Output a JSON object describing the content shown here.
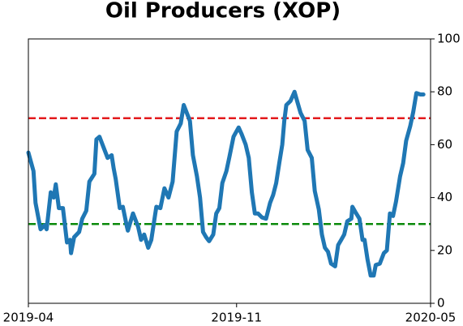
{
  "chart_data": {
    "type": "line",
    "title": "Oil Producers (XOP)",
    "xlim": [
      0,
      396
    ],
    "xticks": [
      {
        "value": 0,
        "label": "2019-04"
      },
      {
        "value": 205,
        "label": "2019-11"
      },
      {
        "value": 396,
        "label": "2020-05"
      }
    ],
    "ylim": [
      0,
      100
    ],
    "yticks": [
      0,
      20,
      40,
      60,
      80,
      100
    ],
    "y_axis_side": "right",
    "hlines": [
      {
        "value": 70,
        "color": "#e31a1c"
      },
      {
        "value": 30,
        "color": "#0a8a0a"
      }
    ],
    "x": [
      0,
      5,
      7,
      12,
      16,
      18,
      22,
      25,
      27,
      30,
      34,
      38,
      41,
      42,
      45,
      50,
      53,
      57,
      60,
      65,
      67,
      70,
      74,
      78,
      82,
      84,
      86,
      90,
      93,
      97,
      98,
      103,
      108,
      111,
      114,
      118,
      121,
      126,
      130,
      134,
      138,
      142,
      146,
      150,
      153,
      156,
      159,
      162,
      166,
      169,
      172,
      175,
      178,
      182,
      185,
      188,
      191,
      195,
      198,
      202,
      207,
      210,
      214,
      217,
      220,
      223,
      226,
      230,
      234,
      238,
      241,
      244,
      247,
      250,
      252,
      254,
      258,
      262,
      265,
      268,
      272,
      275,
      279,
      282,
      286,
      289,
      292,
      295,
      298,
      302,
      305,
      308,
      311,
      314,
      318,
      319,
      322,
      326,
      329,
      331,
      334,
      337,
      340,
      342,
      346,
      350,
      353,
      356,
      359,
      362,
      366,
      369,
      372,
      376,
      379,
      382,
      386,
      389
    ],
    "series": [
      {
        "color": "#1f77b4",
        "values": [
          57,
          50,
          38,
          28,
          29.5,
          28,
          42,
          40,
          45,
          36,
          36,
          23,
          24,
          19,
          25,
          27,
          32,
          35,
          46,
          49,
          62,
          63,
          59,
          55,
          56,
          51,
          47,
          36,
          36.5,
          29,
          27.5,
          34,
          29,
          24,
          26,
          21,
          24,
          36.5,
          36,
          43.5,
          40,
          46,
          65,
          68,
          75,
          72,
          69,
          56,
          48,
          40,
          27,
          25,
          23.5,
          26,
          34,
          36,
          45.5,
          50,
          55.5,
          63,
          66.5,
          64,
          60,
          55,
          42,
          34,
          34,
          32.5,
          32,
          38,
          41,
          45.5,
          53,
          60,
          69,
          75,
          76.5,
          80,
          76,
          72,
          69,
          58,
          55,
          42.5,
          35.5,
          26,
          21,
          19.5,
          15,
          14,
          22,
          24,
          26,
          31,
          32,
          36.5,
          34.5,
          32,
          24,
          24,
          16.5,
          10.5,
          10.5,
          14.5,
          15,
          19,
          20,
          34,
          33,
          38.5,
          48,
          53,
          61.5,
          67,
          72.5,
          79.5,
          79,
          79
        ]
      }
    ]
  }
}
